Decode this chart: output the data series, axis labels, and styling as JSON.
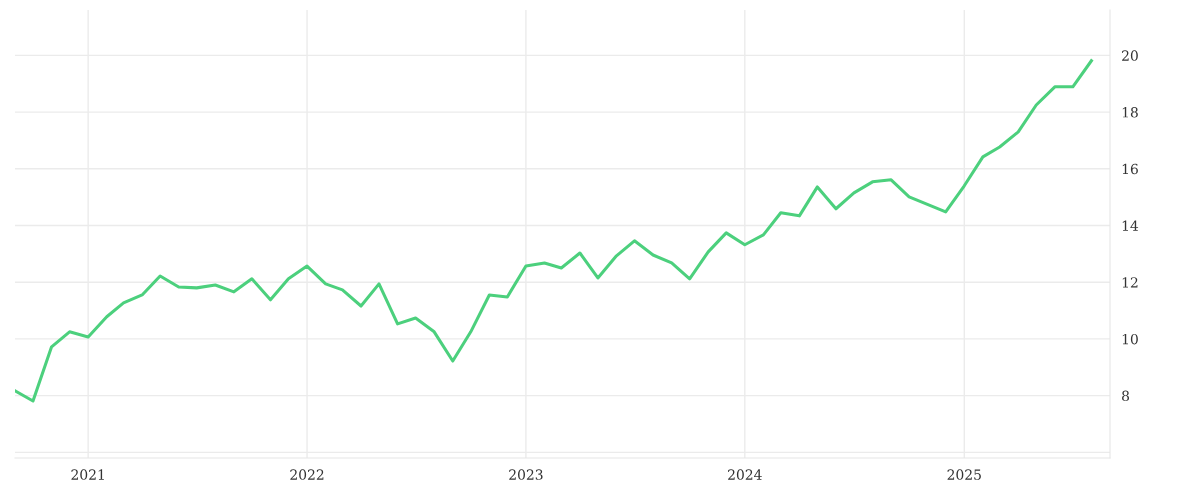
{
  "chart_data": {
    "type": "line",
    "x": [
      "2020-09",
      "2020-10",
      "2020-11",
      "2020-12",
      "2021-01",
      "2021-02",
      "2021-03",
      "2021-04",
      "2021-05",
      "2021-06",
      "2021-07",
      "2021-08",
      "2021-09",
      "2021-10",
      "2021-11",
      "2021-12",
      "2022-01",
      "2022-02",
      "2022-03",
      "2022-04",
      "2022-05",
      "2022-06",
      "2022-07",
      "2022-08",
      "2022-09",
      "2022-10",
      "2022-11",
      "2022-12",
      "2023-01",
      "2023-02",
      "2023-03",
      "2023-04",
      "2023-05",
      "2023-06",
      "2023-07",
      "2023-08",
      "2023-09",
      "2023-10",
      "2023-11",
      "2023-12",
      "2024-01",
      "2024-02",
      "2024-03",
      "2024-04",
      "2024-05",
      "2024-06",
      "2024-07",
      "2024-08",
      "2024-09",
      "2024-10",
      "2024-12",
      "2025-01",
      "2025-02",
      "2025-03",
      "2025-04",
      "2025-05",
      "2025-06",
      "2025-07",
      "2025-08"
    ],
    "series": [
      {
        "color": "#4cd07d",
        "values": [
          8.17,
          7.81,
          9.72,
          10.25,
          10.07,
          10.78,
          11.27,
          11.55,
          12.22,
          11.83,
          11.8,
          11.9,
          11.66,
          12.12,
          11.38,
          12.12,
          12.57,
          11.94,
          11.73,
          11.16,
          11.94,
          10.53,
          10.74,
          10.25,
          9.22,
          10.25,
          11.55,
          11.48,
          12.57,
          12.68,
          12.5,
          13.03,
          12.15,
          12.93,
          13.46,
          12.96,
          12.68,
          12.12,
          13.07,
          13.74,
          13.32,
          13.67,
          14.45,
          14.34,
          15.36,
          14.59,
          15.15,
          15.54,
          15.61,
          15.01,
          14.48,
          15.4,
          16.42,
          16.77,
          17.3,
          18.25,
          18.89,
          18.89,
          19.81
        ]
      }
    ],
    "xlim": [
      "2020-09",
      "2025-09"
    ],
    "xticks": [
      "2021",
      "2022",
      "2023",
      "2024",
      "2025"
    ],
    "ylim": [
      5.8,
      21.6
    ],
    "yticks": [
      {
        "value": 6,
        "label": null
      },
      8,
      10,
      12,
      14,
      16,
      18,
      20
    ],
    "grid": true,
    "marker": "none",
    "line_style": "solid"
  }
}
